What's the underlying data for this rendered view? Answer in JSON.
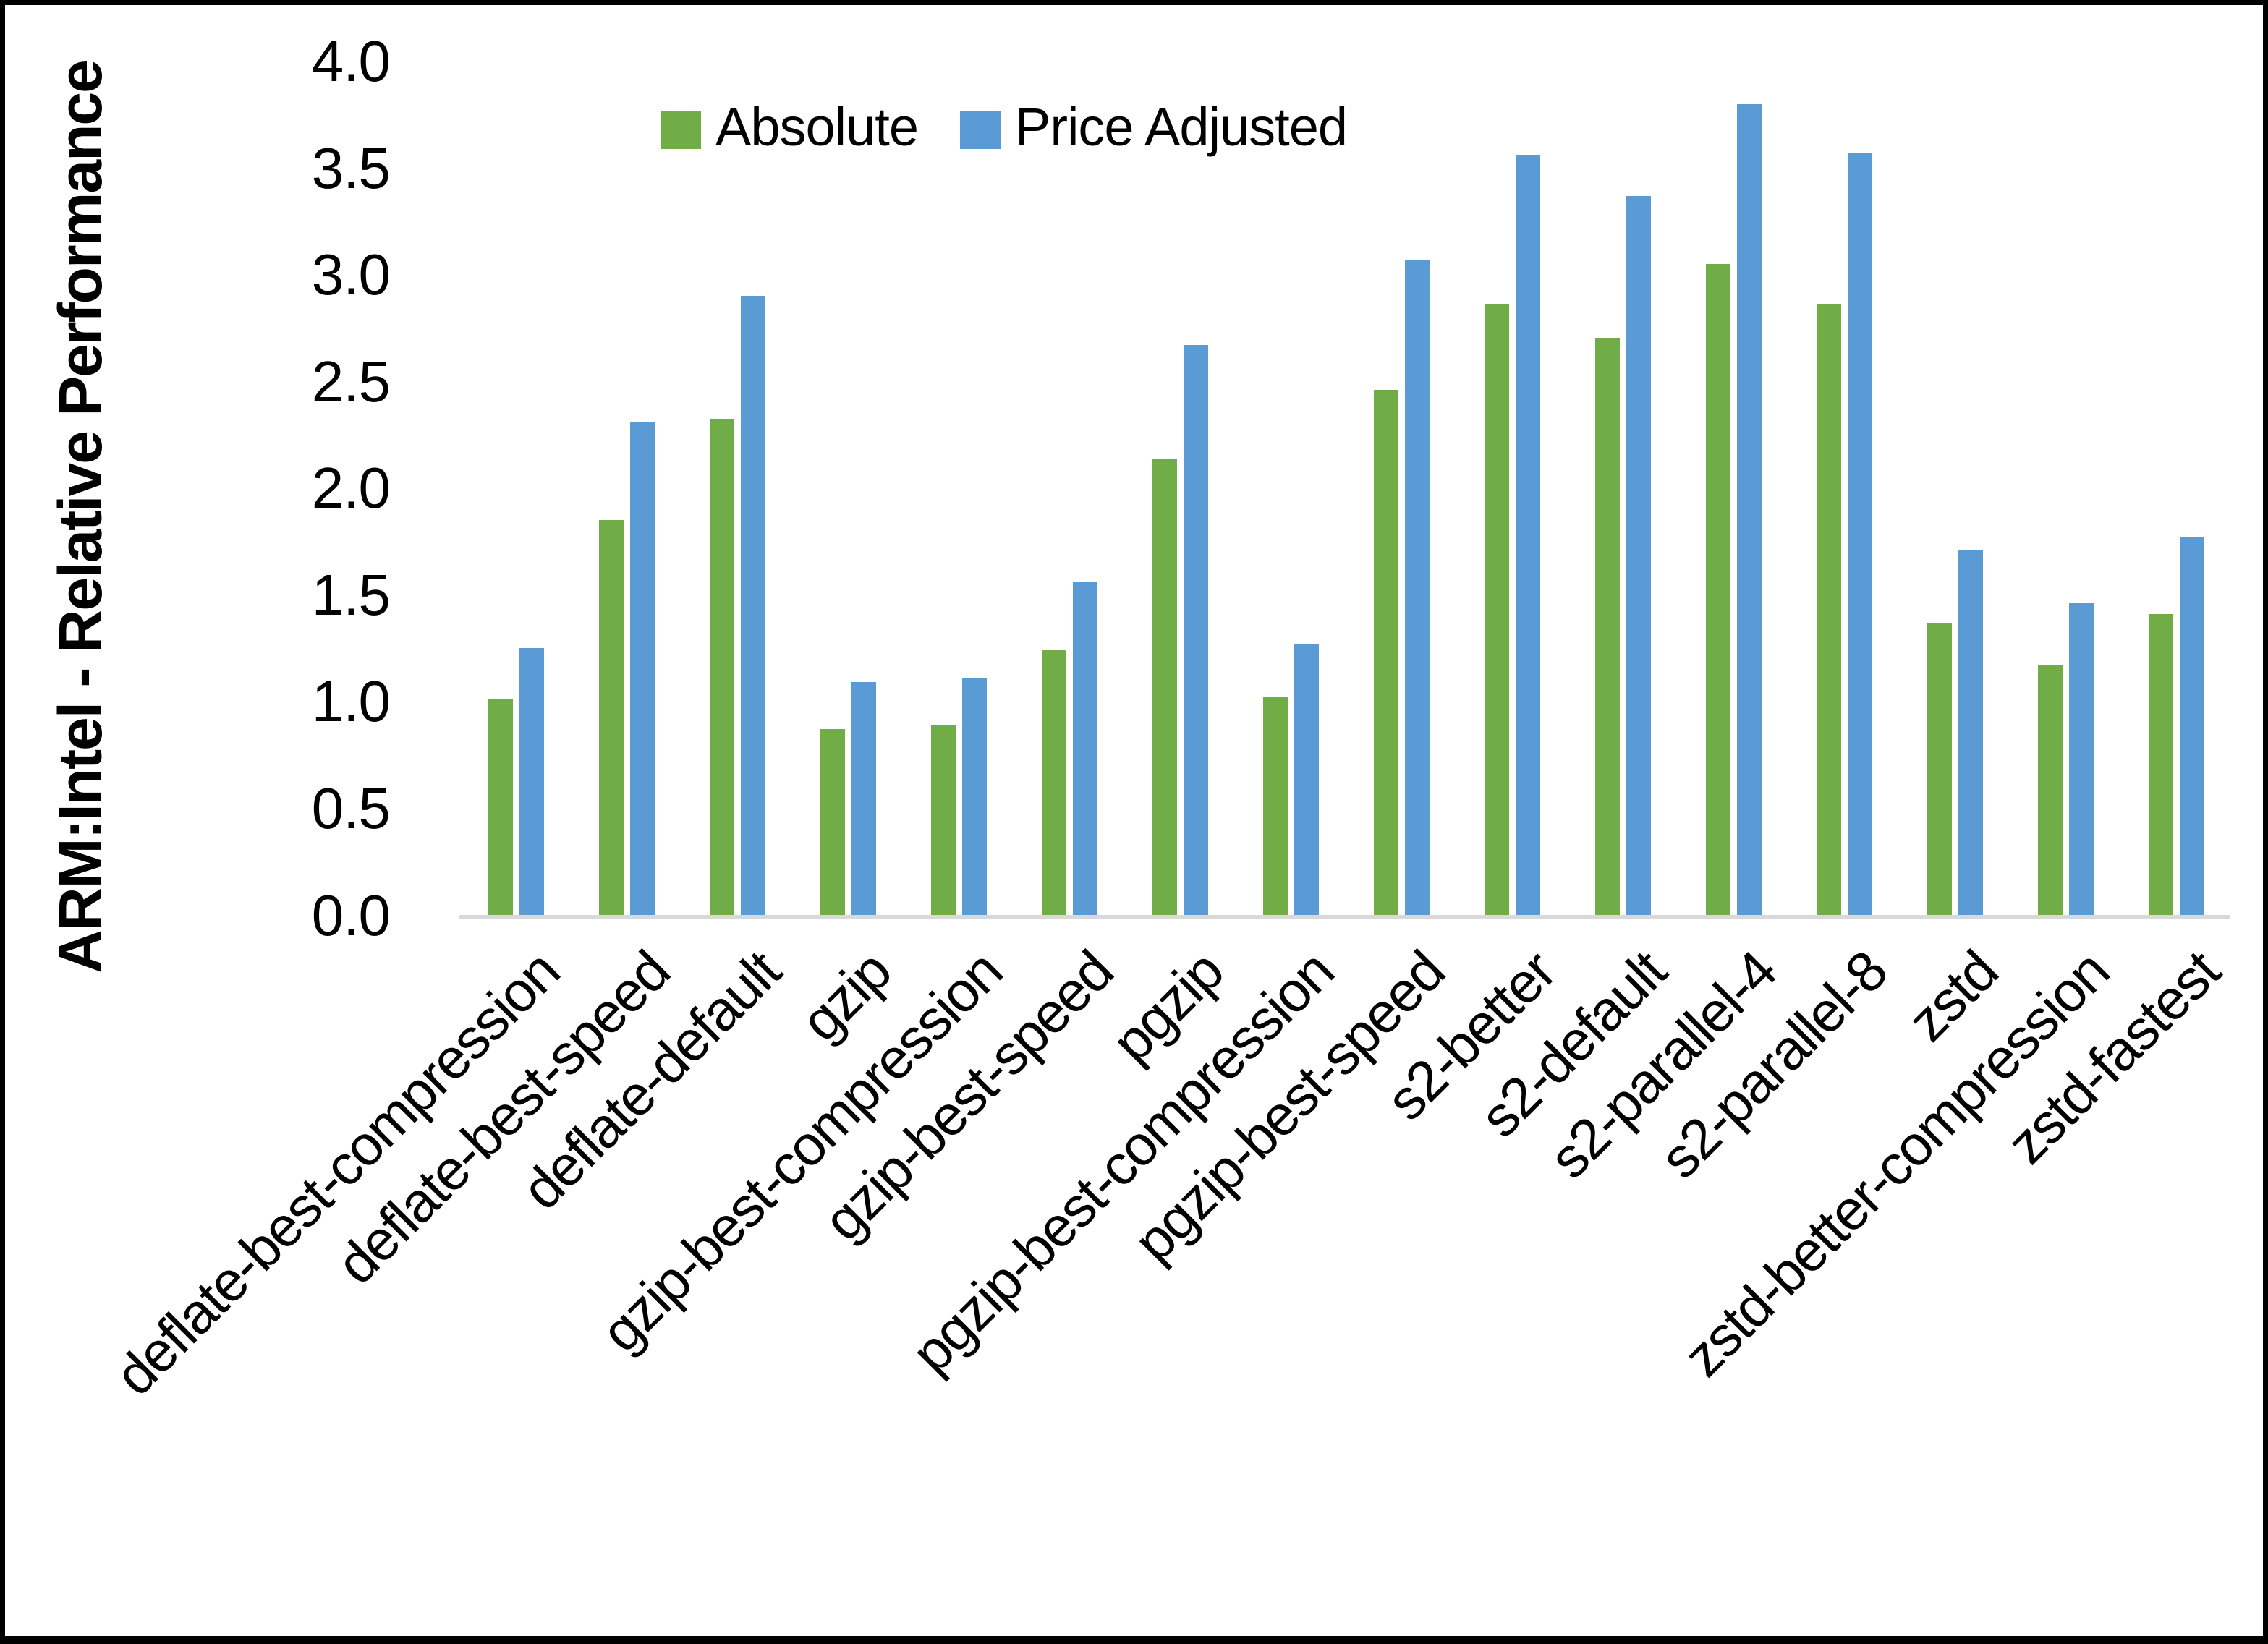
{
  "frame": {
    "background": "#FFFFFF",
    "border_color": "#000000"
  },
  "chart_data": {
    "type": "bar",
    "title": "",
    "ylabel": "ARM:Intel - Relative Performance",
    "xlabel": "",
    "ylim": [
      0.0,
      4.0
    ],
    "ytick_step": 0.5,
    "ytick_labels": [
      "0.0",
      "0.5",
      "1.0",
      "1.5",
      "2.0",
      "2.5",
      "3.0",
      "3.5",
      "4.0"
    ],
    "grid": false,
    "legend_position": "top-center",
    "axis_line_color": "#D9D9D9",
    "categories": [
      "deflate-best-compression",
      "deflate-best-speed",
      "deflate-default",
      "gzip",
      "gzip-best-compression",
      "gzip-best-speed",
      "pgzip",
      "pgzip-best-compression",
      "pgzip-best-speed",
      "s2-better",
      "s2-default",
      "s2-parallel-4",
      "s2-parallel-8",
      "zstd",
      "zstd-better-compression",
      "zstd-fastest"
    ],
    "series": [
      {
        "name": "Absolute",
        "color": "#70AD47",
        "values": [
          1.01,
          1.85,
          2.32,
          0.87,
          0.89,
          1.24,
          2.14,
          1.02,
          2.46,
          2.86,
          2.7,
          3.05,
          2.86,
          1.37,
          1.17,
          1.41
        ]
      },
      {
        "name": "Price Adjusted",
        "color": "#5B9BD5",
        "values": [
          1.25,
          2.31,
          2.9,
          1.09,
          1.11,
          1.56,
          2.67,
          1.27,
          3.07,
          3.56,
          3.37,
          3.8,
          3.57,
          1.71,
          1.46,
          1.77
        ]
      }
    ]
  }
}
